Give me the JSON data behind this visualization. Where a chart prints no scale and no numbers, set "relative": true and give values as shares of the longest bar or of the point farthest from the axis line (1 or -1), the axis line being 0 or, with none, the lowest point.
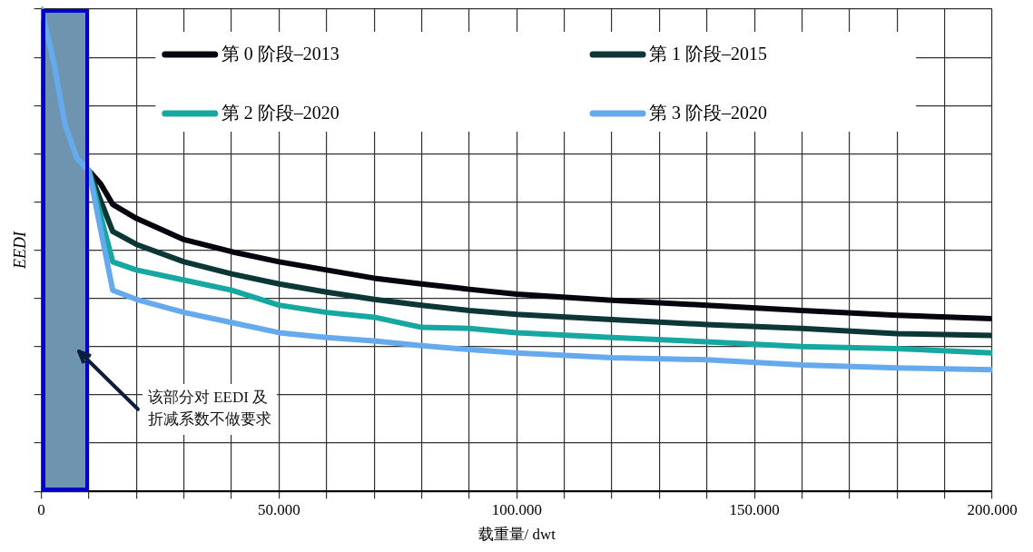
{
  "chart_data": {
    "type": "line",
    "relative": true,
    "xlabel": "载重量/ dwt",
    "ylabel": "EEDI",
    "xlim": [
      0,
      200000
    ],
    "xticks": [
      0,
      {
        "value": 10000,
        "label": null
      },
      {
        "value": 20000,
        "label": null
      },
      {
        "value": 30000,
        "label": null
      },
      {
        "value": 40000,
        "label": null
      },
      {
        "value": 50000,
        "label": "50.000"
      },
      {
        "value": 60000,
        "label": null
      },
      {
        "value": 70000,
        "label": null
      },
      {
        "value": 80000,
        "label": null
      },
      {
        "value": 90000,
        "label": null
      },
      {
        "value": 100000,
        "label": "100.000"
      },
      {
        "value": 110000,
        "label": null
      },
      {
        "value": 120000,
        "label": null
      },
      {
        "value": 130000,
        "label": null
      },
      {
        "value": 140000,
        "label": null
      },
      {
        "value": 150000,
        "label": "150.000"
      },
      {
        "value": 160000,
        "label": null
      },
      {
        "value": 170000,
        "label": null
      },
      {
        "value": 180000,
        "label": null
      },
      {
        "value": 190000,
        "label": null
      },
      {
        "value": 200000,
        "label": "200.000"
      }
    ],
    "grid": true,
    "legend": "top",
    "marker": "none",
    "line_style": "solid",
    "bands": [
      {
        "axis": "x",
        "from": 0,
        "to": 10000,
        "color": "#6f94b0"
      }
    ],
    "annotations": [
      "该部分对 EEDI 及折减系数不做要求"
    ],
    "series": [
      {
        "name": "第 0 阶段–2013",
        "color": "#05050f",
        "x": [
          10000,
          12500,
          15000,
          20000,
          30000,
          40000,
          50000,
          60000,
          70000,
          80000,
          90000,
          100000,
          120000,
          140000,
          160000,
          180000,
          200000
        ],
        "values": [
          0.665,
          0.637,
          0.595,
          0.566,
          0.522,
          0.497,
          0.476,
          0.459,
          0.442,
          0.43,
          0.419,
          0.409,
          0.396,
          0.386,
          0.375,
          0.365,
          0.358
        ]
      },
      {
        "name": "第 1 阶段–2015",
        "color": "#0d3636",
        "x": [
          10000,
          15000,
          20000,
          30000,
          40000,
          50000,
          60000,
          70000,
          80000,
          90000,
          100000,
          120000,
          140000,
          160000,
          180000,
          200000
        ],
        "values": [
          0.665,
          0.539,
          0.512,
          0.476,
          0.451,
          0.43,
          0.413,
          0.398,
          0.386,
          0.375,
          0.367,
          0.356,
          0.346,
          0.338,
          0.327,
          0.323
        ]
      },
      {
        "name": "第 2 阶段–2020",
        "color": "#16a8a0",
        "x": [
          10000,
          15000,
          20000,
          30000,
          40000,
          50000,
          60000,
          70000,
          80000,
          90000,
          100000,
          120000,
          140000,
          160000,
          180000,
          200000
        ],
        "values": [
          0.665,
          0.476,
          0.459,
          0.438,
          0.417,
          0.386,
          0.371,
          0.361,
          0.34,
          0.338,
          0.329,
          0.319,
          0.31,
          0.3,
          0.296,
          0.287
        ]
      },
      {
        "name": "第 3 阶段–2020",
        "color": "#66aaee",
        "x": [
          0,
          2500,
          5000,
          7500,
          10000,
          15000,
          20000,
          30000,
          40000,
          50000,
          60000,
          70000,
          80000,
          90000,
          100000,
          120000,
          140000,
          160000,
          180000,
          200000
        ],
        "values": [
          1.0,
          0.895,
          0.759,
          0.69,
          0.665,
          0.417,
          0.398,
          0.371,
          0.35,
          0.329,
          0.319,
          0.312,
          0.302,
          0.294,
          0.287,
          0.277,
          0.273,
          0.262,
          0.256,
          0.252
        ]
      }
    ]
  }
}
